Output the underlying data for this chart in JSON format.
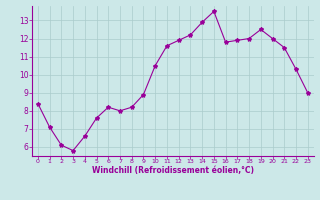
{
  "x": [
    0,
    1,
    2,
    3,
    4,
    5,
    6,
    7,
    8,
    9,
    10,
    11,
    12,
    13,
    14,
    15,
    16,
    17,
    18,
    19,
    20,
    21,
    22,
    23
  ],
  "y": [
    8.4,
    7.1,
    6.1,
    5.8,
    6.6,
    7.6,
    8.2,
    8.0,
    8.2,
    8.9,
    10.5,
    11.6,
    11.9,
    12.2,
    12.9,
    13.5,
    11.8,
    11.9,
    12.0,
    12.5,
    12.0,
    11.5,
    10.3,
    9.0
  ],
  "line_color": "#990099",
  "marker": "*",
  "bg_color": "#cce8e8",
  "grid_color": "#aacccc",
  "xlabel": "Windchill (Refroidissement éolien,°C)",
  "xlabel_color": "#990099",
  "tick_color": "#990099",
  "ylim": [
    5.5,
    13.8
  ],
  "xlim": [
    -0.5,
    23.5
  ],
  "yticks": [
    6,
    7,
    8,
    9,
    10,
    11,
    12,
    13
  ],
  "xticks": [
    0,
    1,
    2,
    3,
    4,
    5,
    6,
    7,
    8,
    9,
    10,
    11,
    12,
    13,
    14,
    15,
    16,
    17,
    18,
    19,
    20,
    21,
    22,
    23
  ],
  "spine_color": "#990099"
}
